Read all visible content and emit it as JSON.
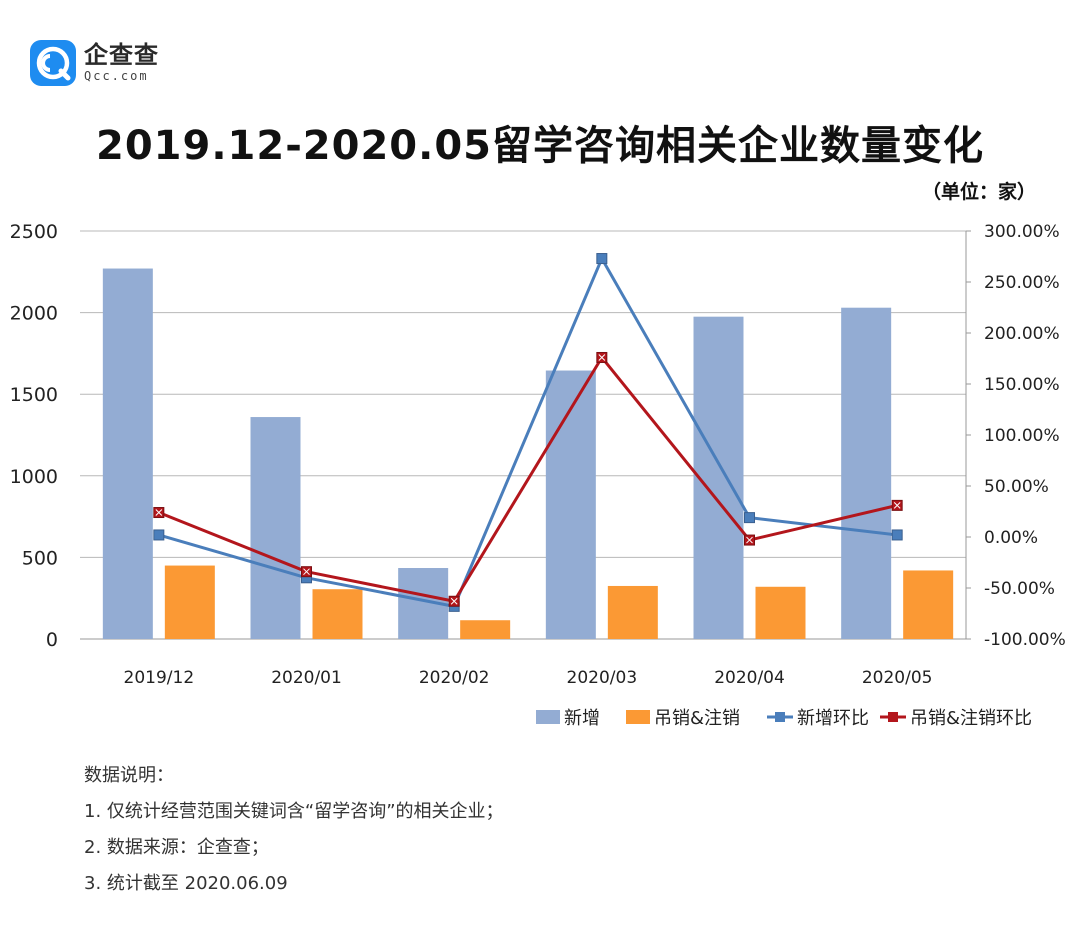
{
  "brand": {
    "name": "企查查",
    "domain": "Qcc.com",
    "logo_icon": "qcc-logo-icon",
    "color": "#1e8cf0"
  },
  "title": "2019.12-2020.05留学咨询相关企业数量变化",
  "unit": "（单位：家）",
  "chart_data": {
    "type": "bar",
    "categories": [
      "2019/12",
      "2020/01",
      "2020/02",
      "2020/03",
      "2020/04",
      "2020/05"
    ],
    "y_left": {
      "min": 0,
      "max": 2500,
      "ticks": [
        "0",
        "500",
        "1000",
        "1500",
        "2000",
        "2500"
      ]
    },
    "y_right": {
      "min": -100,
      "max": 300,
      "ticks": [
        "-100.00%",
        "-50.00%",
        "0.00%",
        "50.00%",
        "100.00%",
        "150.00%",
        "200.00%",
        "250.00%",
        "300.00%"
      ]
    },
    "grid": true,
    "legend_position": "bottom-right",
    "series": [
      {
        "name": "新增",
        "type": "bar",
        "axis": "left",
        "color": "#93acd3",
        "values": [
          2270,
          1360,
          435,
          1645,
          1975,
          2030
        ]
      },
      {
        "name": "吊销&注销",
        "type": "bar",
        "axis": "left",
        "color": "#fb9934",
        "values": [
          450,
          305,
          115,
          325,
          320,
          420
        ]
      },
      {
        "name": "新增环比",
        "type": "line",
        "axis": "right",
        "color": "#4a7ebb",
        "marker": "square",
        "values": [
          2,
          -40,
          -68,
          273,
          19,
          2
        ]
      },
      {
        "name": "吊销&注销环比",
        "type": "line",
        "axis": "right",
        "color": "#b3161c",
        "marker": "x-square",
        "values": [
          24,
          -34,
          -63,
          176,
          -3,
          31
        ]
      }
    ]
  },
  "notes": {
    "heading": "数据说明：",
    "items": [
      "1. 仅统计经营范围关键词含“留学咨询”的相关企业；",
      "2. 数据来源：企查查；",
      "3. 统计截至 2020.06.09"
    ]
  }
}
